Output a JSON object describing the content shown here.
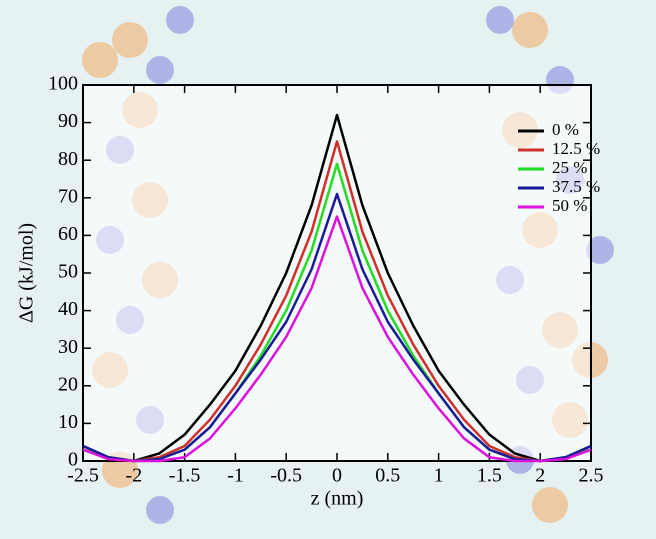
{
  "chart_data": {
    "type": "line",
    "xlabel": "z (nm)",
    "ylabel": "ΔG (kJ/mol)",
    "x": [
      -2.5,
      -2.25,
      -2,
      -1.75,
      -1.5,
      -1.25,
      -1,
      -0.75,
      -0.5,
      -0.25,
      0,
      0.25,
      0.5,
      0.75,
      1,
      1.25,
      1.5,
      1.75,
      2,
      2.25,
      2.5
    ],
    "series": [
      {
        "name": "0 %",
        "color": "#000000",
        "values": [
          4,
          1,
          0,
          2,
          7,
          15,
          24,
          36,
          50,
          68,
          92,
          68,
          50,
          36,
          24,
          15,
          7,
          2,
          0,
          1,
          4
        ]
      },
      {
        "name": "12.5 %",
        "color": "#d0302a",
        "values": [
          3,
          1,
          0,
          1,
          4,
          11,
          20,
          31,
          44,
          61,
          85,
          61,
          44,
          31,
          20,
          11,
          4,
          1,
          0,
          1,
          3
        ]
      },
      {
        "name": "25 %",
        "color": "#22dd22",
        "values": [
          3,
          1,
          0,
          0.5,
          3,
          9,
          18,
          28,
          40,
          56,
          79,
          56,
          40,
          28,
          18,
          9,
          3,
          0.5,
          0,
          1,
          3
        ]
      },
      {
        "name": "37.5 %",
        "color": "#1a1a9a",
        "values": [
          4,
          1,
          0,
          0.5,
          3,
          9,
          18,
          27,
          37,
          51,
          71,
          51,
          37,
          27,
          18,
          9,
          3,
          0.5,
          0,
          1,
          4
        ]
      },
      {
        "name": "50 %",
        "color": "#dd11dd",
        "values": [
          3,
          0.5,
          0,
          0,
          1,
          6,
          14,
          23,
          33,
          46,
          65,
          46,
          33,
          23,
          14,
          6,
          1,
          0,
          0,
          0.5,
          3
        ]
      }
    ],
    "xlim": [
      -2.5,
      2.5
    ],
    "xticks": [
      -2.5,
      -2,
      -1.5,
      -1,
      -0.5,
      0,
      0.5,
      1,
      1.5,
      2,
      2.5
    ],
    "ylim": [
      0,
      100
    ],
    "yticks": [
      0,
      10,
      20,
      30,
      40,
      50,
      60,
      70,
      80,
      90,
      100
    ],
    "legend": "upper-right"
  }
}
